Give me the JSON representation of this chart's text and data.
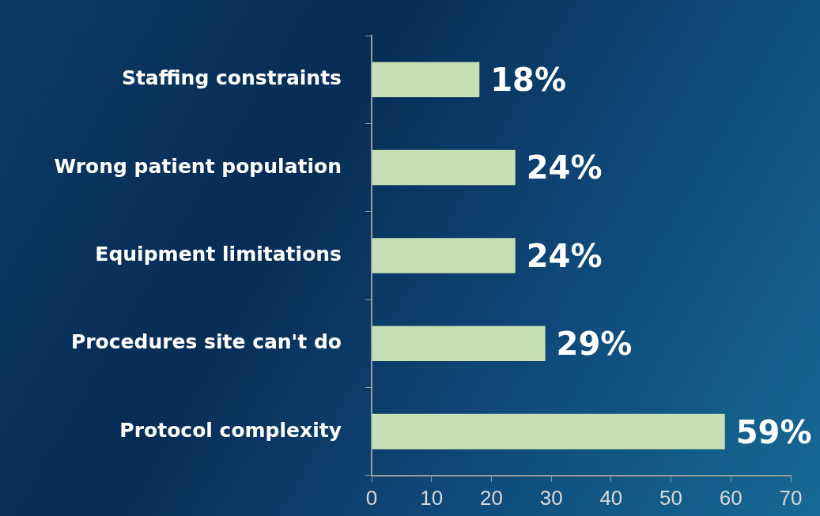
{
  "chart_data": {
    "type": "bar",
    "orientation": "horizontal",
    "categories": [
      "Staffing constraints",
      "Wrong patient population",
      "Equipment limitations",
      "Procedures site can't do",
      "Protocol complexity"
    ],
    "values": [
      18,
      24,
      24,
      29,
      59
    ],
    "value_labels": [
      "18%",
      "24%",
      "24%",
      "29%",
      "59%"
    ],
    "color": "#c5e0b4",
    "xlim": [
      0,
      70
    ],
    "xticks": [
      0,
      10,
      20,
      30,
      40,
      50,
      60,
      70
    ],
    "grid": false
  }
}
